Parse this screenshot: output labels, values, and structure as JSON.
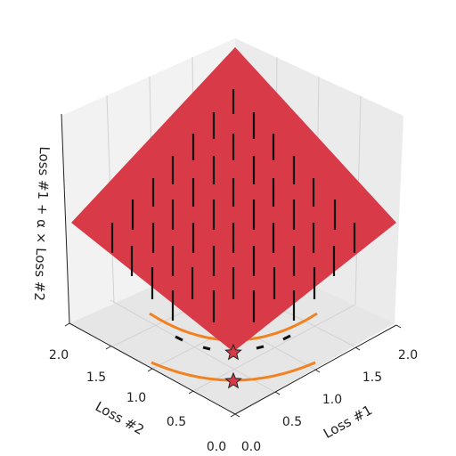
{
  "chart_data": {
    "type": "surface3d",
    "xlabel": "Loss #1",
    "ylabel": "Loss #2",
    "zlabel": "Loss #1 + α × Loss #2",
    "x_ticks": [
      "0.0",
      "0.5",
      "1.0",
      "1.5",
      "2.0"
    ],
    "y_ticks": [
      "0.0",
      "0.5",
      "1.0",
      "1.5",
      "2.0"
    ],
    "xlim": [
      0,
      2
    ],
    "ylim": [
      0,
      2
    ],
    "surface_color": "#d93a48",
    "arc_color": "#f28220",
    "star_color": "#d93a48",
    "grid": true
  }
}
